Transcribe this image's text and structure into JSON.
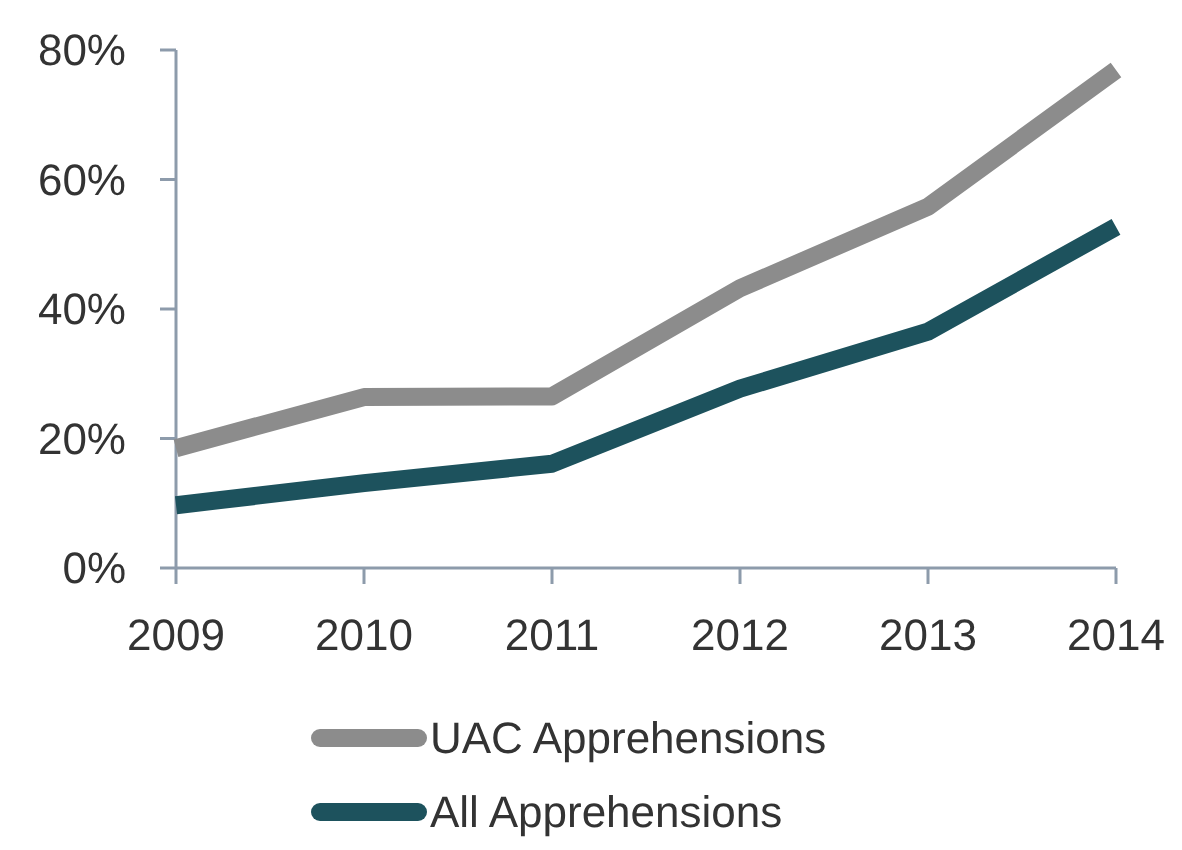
{
  "chart_data": {
    "type": "line",
    "x": [
      2009,
      2010,
      2011,
      2012,
      2013,
      2014
    ],
    "xlim": [
      2009,
      2014
    ],
    "xticks": [
      2009,
      2010,
      2011,
      2012,
      2013,
      2014
    ],
    "ylim": [
      0,
      80
    ],
    "yticks": [
      {
        "value": 0,
        "label": "0%"
      },
      {
        "value": 20,
        "label": "20%"
      },
      {
        "value": 40,
        "label": "40%"
      },
      {
        "value": 60,
        "label": "60%"
      },
      {
        "value": 80,
        "label": "80%"
      }
    ],
    "series": [
      {
        "name": "UAC Apprehensions",
        "color": "#8c8c8c",
        "values": [
          18.5,
          26.4,
          26.5,
          43.2,
          55.8,
          76.9
        ]
      },
      {
        "name": "All Apprehensions",
        "color": "#1d525d",
        "values": [
          9.7,
          13.1,
          16.1,
          27.7,
          36.5,
          52.7
        ]
      }
    ],
    "grid": false,
    "legend": "bottom",
    "marker": "none",
    "line_style": "solid"
  }
}
